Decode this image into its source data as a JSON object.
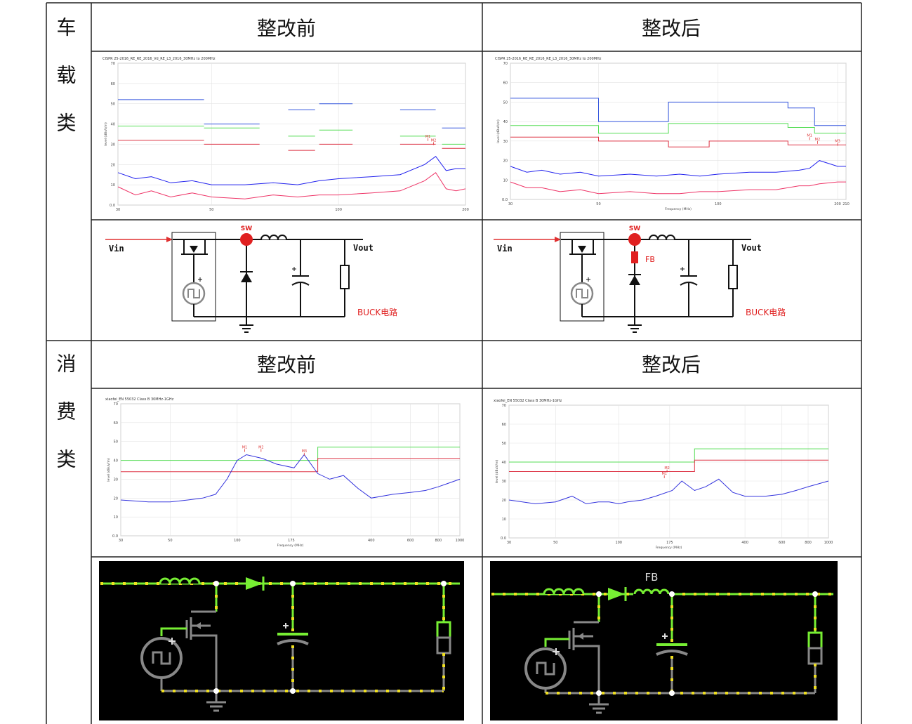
{
  "sections": [
    {
      "label": "车载类",
      "before": "整改前",
      "after": "整改后",
      "charts": [
        {
          "type": "line",
          "title": "CISPR 25-2016_RE_RE_2016_Vd_RE_L3_2016_30MHz to 200MHz",
          "ylabel": "level (dBuV/m)",
          "xlog": true,
          "xlim": [
            30,
            200
          ],
          "ylim": [
            0,
            70
          ],
          "xticks": [
            30,
            50,
            100,
            200
          ],
          "yticks": [
            {
              "value": 0,
              "label": "0.0"
            },
            10,
            20,
            30,
            40,
            50,
            60,
            70
          ],
          "grid": true,
          "series": [
            {
              "color": "#3355dd",
              "x": [
                30,
                48,
                null,
                48,
                65,
                null,
                76,
                88,
                null,
                90,
                108,
                null,
                140,
                170,
                null,
                176,
                200
              ],
              "values": [
                52,
                52,
                null,
                40,
                40,
                null,
                47,
                47,
                null,
                50,
                50,
                null,
                47,
                47,
                null,
                38,
                38
              ]
            },
            {
              "color": "#55dd55",
              "x": [
                30,
                48,
                null,
                48,
                65,
                null,
                76,
                88,
                null,
                90,
                108,
                null,
                140,
                170,
                null,
                176,
                200
              ],
              "values": [
                39,
                39,
                null,
                38,
                38,
                null,
                34,
                34,
                null,
                37,
                37,
                null,
                34,
                34,
                null,
                30,
                30
              ]
            },
            {
              "color": "#dd3344",
              "x": [
                30,
                48,
                null,
                48,
                65,
                null,
                76,
                88,
                null,
                90,
                108,
                null,
                140,
                170,
                null,
                176,
                200
              ],
              "values": [
                32,
                32,
                null,
                30,
                30,
                null,
                27,
                27,
                null,
                30,
                30,
                null,
                30,
                30,
                null,
                28,
                28
              ]
            },
            {
              "color": "#2222ee",
              "x": [
                30,
                33,
                36,
                40,
                45,
                50,
                60,
                70,
                80,
                90,
                100,
                120,
                140,
                160,
                170,
                180,
                190,
                200
              ],
              "values": [
                16,
                13,
                14,
                11,
                12,
                10,
                10,
                11,
                10,
                12,
                13,
                14,
                15,
                20,
                24,
                17,
                18,
                18
              ]
            },
            {
              "color": "#ee3366",
              "x": [
                30,
                33,
                36,
                40,
                45,
                50,
                60,
                70,
                80,
                90,
                100,
                120,
                140,
                160,
                170,
                180,
                190,
                200
              ],
              "values": [
                9,
                5,
                7,
                4,
                6,
                4,
                3,
                5,
                4,
                5,
                5,
                6,
                7,
                12,
                16,
                8,
                7,
                8
              ]
            }
          ],
          "markers": [
            {
              "label": "M1",
              "x": 163,
              "y": 33
            },
            {
              "label": "M2",
              "x": 168,
              "y": 31
            }
          ]
        },
        {
          "type": "line",
          "title": "CISPR 25-2016_RE_RE_2016_RE_L3_2016_30MHz to 200MHz",
          "ylabel": "level (dBuV/m)",
          "xlabel": "Frequency (MHz)",
          "xlog": true,
          "xlim": [
            30,
            210
          ],
          "ylim": [
            0,
            70
          ],
          "xticks": [
            30,
            50,
            100,
            200,
            210
          ],
          "yticks": [
            {
              "value": 0,
              "label": "0.0"
            },
            10,
            20,
            30,
            40,
            50,
            60,
            70
          ],
          "grid": true,
          "series": [
            {
              "color": "#3355dd",
              "x": [
                30,
                50,
                50,
                75,
                75,
                150,
                150,
                175,
                175,
                210
              ],
              "values": [
                52,
                52,
                40,
                40,
                50,
                50,
                47,
                47,
                38,
                38
              ]
            },
            {
              "color": "#55dd55",
              "x": [
                30,
                50,
                50,
                75,
                75,
                150,
                150,
                175,
                175,
                210
              ],
              "values": [
                38,
                38,
                34,
                34,
                39,
                39,
                37,
                37,
                34,
                34
              ]
            },
            {
              "color": "#dd3344",
              "x": [
                30,
                50,
                50,
                75,
                75,
                95,
                95,
                150,
                150,
                210
              ],
              "values": [
                32,
                32,
                30,
                30,
                27,
                27,
                30,
                30,
                28,
                28
              ]
            },
            {
              "color": "#2222ee",
              "x": [
                30,
                33,
                36,
                40,
                45,
                50,
                60,
                70,
                80,
                90,
                100,
                120,
                140,
                160,
                170,
                180,
                200,
                210
              ],
              "values": [
                17,
                14,
                15,
                13,
                14,
                12,
                13,
                12,
                13,
                12,
                13,
                14,
                14,
                15,
                16,
                20,
                17,
                17
              ]
            },
            {
              "color": "#ee3366",
              "x": [
                30,
                33,
                36,
                40,
                45,
                50,
                60,
                70,
                80,
                90,
                100,
                120,
                140,
                160,
                170,
                180,
                200,
                210
              ],
              "values": [
                9,
                6,
                6,
                4,
                5,
                3,
                4,
                3,
                3,
                4,
                4,
                5,
                5,
                7,
                7,
                8,
                9,
                9
              ]
            }
          ],
          "markers": [
            {
              "label": "M1",
              "x": 170,
              "y": 32
            },
            {
              "label": "M2",
              "x": 178,
              "y": 30
            },
            {
              "label": "M3",
              "x": 200,
              "y": 29
            }
          ]
        }
      ],
      "circuits": [
        {
          "style": "schematic",
          "vin": "Vin",
          "sw": "SW",
          "vout": "Vout",
          "name": "BUCK电路"
        },
        {
          "style": "schematic",
          "vin": "Vin",
          "sw": "SW",
          "fb": "FB",
          "vout": "Vout",
          "name": "BUCK电路"
        }
      ]
    },
    {
      "label": "消费类",
      "before": "整改前",
      "after": "整改后",
      "charts": [
        {
          "type": "line",
          "title": "xiaofei_EN 55032 Class B 30MHz-1GHz",
          "ylabel": "level (dBuV/m)",
          "xlabel": "Frequency (MHz)",
          "xlog": true,
          "xlim": [
            30,
            1000
          ],
          "ylim": [
            0,
            70
          ],
          "xticks": [
            30,
            50,
            100,
            175,
            400,
            600,
            800,
            1000
          ],
          "yticks": [
            {
              "value": 0,
              "label": "0.0"
            },
            10,
            20,
            30,
            40,
            50,
            60,
            70
          ],
          "grid": true,
          "series": [
            {
              "color": "#55dd55",
              "x": [
                30,
                230,
                230,
                1000
              ],
              "values": [
                40,
                40,
                47,
                47
              ]
            },
            {
              "color": "#dd3344",
              "x": [
                30,
                230,
                230,
                1000
              ],
              "values": [
                34,
                34,
                41,
                41
              ]
            },
            {
              "color": "#3333dd",
              "x": [
                30,
                40,
                50,
                60,
                70,
                80,
                90,
                100,
                110,
                130,
                150,
                180,
                200,
                230,
                260,
                300,
                350,
                400,
                500,
                600,
                700,
                800,
                1000
              ],
              "values": [
                19,
                18,
                18,
                19,
                20,
                22,
                30,
                40,
                43,
                41,
                38,
                36,
                43,
                33,
                30,
                32,
                25,
                20,
                22,
                23,
                24,
                26,
                30
              ]
            }
          ],
          "markers": [
            {
              "label": "M1",
              "x": 108,
              "y": 46
            },
            {
              "label": "M2",
              "x": 128,
              "y": 46
            },
            {
              "label": "M3",
              "x": 200,
              "y": 44
            }
          ]
        },
        {
          "type": "line",
          "title": "xiaofei_EN 55032 Class B 30MHz-1GHz",
          "ylabel": "level (dBuV/m)",
          "xlabel": "Frequency (MHz)",
          "xlog": true,
          "xlim": [
            30,
            1000
          ],
          "ylim": [
            0,
            70
          ],
          "xticks": [
            30,
            50,
            100,
            175,
            400,
            600,
            800,
            1000
          ],
          "yticks": [
            {
              "value": 0,
              "label": "0.0"
            },
            10,
            20,
            30,
            40,
            50,
            60,
            70
          ],
          "grid": true,
          "series": [
            {
              "color": "#55dd55",
              "x": [
                30,
                230,
                230,
                1000
              ],
              "values": [
                40,
                40,
                47,
                47
              ]
            },
            {
              "color": "#dd3344",
              "x": [
                30,
                230,
                230,
                1000
              ],
              "values": [
                35,
                35,
                41,
                41
              ]
            },
            {
              "color": "#3333dd",
              "x": [
                30,
                40,
                50,
                60,
                70,
                80,
                90,
                100,
                110,
                130,
                150,
                180,
                200,
                230,
                260,
                300,
                350,
                400,
                500,
                600,
                700,
                800,
                1000
              ],
              "values": [
                20,
                18,
                19,
                22,
                18,
                19,
                19,
                18,
                19,
                20,
                22,
                25,
                30,
                25,
                27,
                31,
                24,
                22,
                22,
                23,
                25,
                27,
                30
              ]
            }
          ],
          "markers": [
            {
              "label": "M1",
              "x": 165,
              "y": 33
            },
            {
              "label": "M2",
              "x": 170,
              "y": 36
            }
          ]
        }
      ],
      "circuits": [
        {
          "style": "simulator"
        },
        {
          "style": "simulator",
          "fb": "FB"
        }
      ]
    }
  ]
}
